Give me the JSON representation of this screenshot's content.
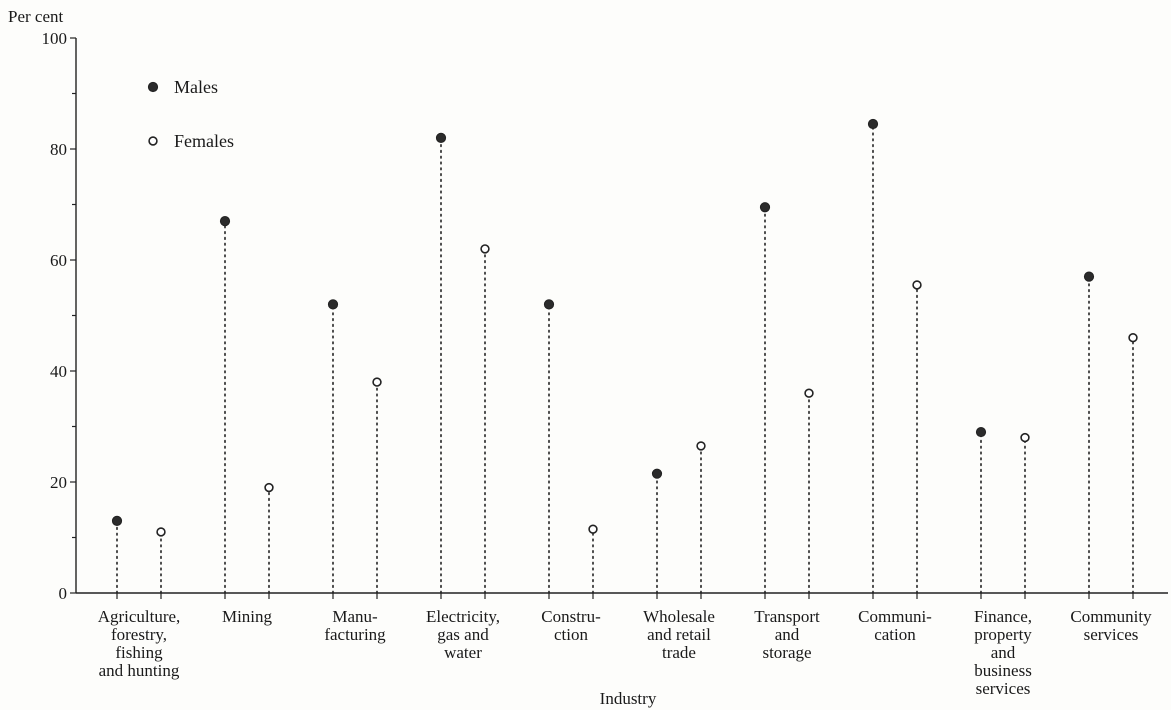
{
  "chart_data": {
    "type": "scatter",
    "title": "",
    "ylabel": "Per cent",
    "xlabel": "Industry",
    "ylim": [
      0,
      100
    ],
    "yticks": [
      0,
      20,
      40,
      60,
      80,
      100
    ],
    "legend_position": "top-left",
    "categories": [
      [
        "Agriculture,",
        "forestry,",
        "fishing",
        "and hunting"
      ],
      [
        "Mining"
      ],
      [
        "Manu-",
        "facturing"
      ],
      [
        "Electricity,",
        "gas and",
        "water"
      ],
      [
        "Constru-",
        "ction"
      ],
      [
        "Wholesale",
        "and retail",
        "trade"
      ],
      [
        "Transport",
        "and",
        "storage"
      ],
      [
        "Communi-",
        "cation"
      ],
      [
        "Finance,",
        "property",
        "and",
        "business",
        "services"
      ],
      [
        "Community",
        "services"
      ]
    ],
    "series": [
      {
        "name": "Males",
        "marker": "filled-circle",
        "values": [
          13,
          67,
          52,
          82,
          52,
          21.5,
          69.5,
          84.5,
          29,
          57
        ]
      },
      {
        "name": "Females",
        "marker": "open-circle",
        "values": [
          11,
          19,
          38,
          62,
          11.5,
          26.5,
          36,
          55.5,
          28,
          46
        ]
      }
    ],
    "colors": {
      "ink": "#222222",
      "female_fill": "#ffffff",
      "male_fill": "#2b2b2b"
    }
  }
}
